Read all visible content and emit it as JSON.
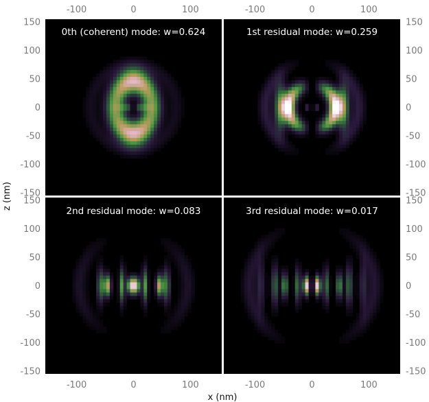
{
  "figure": {
    "xlabel": "x (nm)",
    "ylabel": "z (nm)"
  },
  "colors": {
    "background": "#000000",
    "separator": "#ffffff",
    "tick_text": "#7a7a7a",
    "colormap": [
      "#000000",
      "#2b1a3d",
      "#2c5a3a",
      "#4f9a43",
      "#b89a5a",
      "#e0b4c4",
      "#ffffff"
    ]
  },
  "chart_data": [
    {
      "type": "heatmap",
      "title": "0th (coherent) mode: w=0.624",
      "mode_index": 0,
      "weight": 0.624,
      "xlim": [
        -155,
        155
      ],
      "ylim": [
        -155,
        155
      ],
      "xticks": [
        "-100",
        "0",
        "100"
      ],
      "yticks": [
        "150",
        "100",
        "50",
        "0",
        "-50",
        "-100",
        "-150"
      ],
      "xtick_values": [
        -100,
        0,
        100
      ],
      "ytick_values": [
        150,
        100,
        50,
        0,
        -50,
        -100,
        -150
      ],
      "x_tick_position": "top",
      "y_tick_position": "left"
    },
    {
      "type": "heatmap",
      "title": "1st residual mode: w=0.259",
      "mode_index": 1,
      "weight": 0.259,
      "xlim": [
        -155,
        155
      ],
      "ylim": [
        -155,
        155
      ],
      "xticks": [
        "-100",
        "0",
        "100"
      ],
      "yticks": [
        "150",
        "100",
        "50",
        "0",
        "-50",
        "-100",
        "-150"
      ],
      "xtick_values": [
        -100,
        0,
        100
      ],
      "ytick_values": [
        150,
        100,
        50,
        0,
        -50,
        -100,
        -150
      ],
      "x_tick_position": "top",
      "y_tick_position": "right"
    },
    {
      "type": "heatmap",
      "title": "2nd residual mode: w=0.083",
      "mode_index": 2,
      "weight": 0.083,
      "xlim": [
        -155,
        155
      ],
      "ylim": [
        -155,
        155
      ],
      "xticks": [
        "-100",
        "0",
        "100"
      ],
      "yticks": [
        "150",
        "100",
        "50",
        "0",
        "-50",
        "-100",
        "-150"
      ],
      "xtick_values": [
        -100,
        0,
        100
      ],
      "ytick_values": [
        150,
        100,
        50,
        0,
        -50,
        -100,
        -150
      ],
      "x_tick_position": "bottom",
      "y_tick_position": "left"
    },
    {
      "type": "heatmap",
      "title": "3rd residual mode: w=0.017",
      "mode_index": 3,
      "weight": 0.017,
      "xlim": [
        -155,
        155
      ],
      "ylim": [
        -155,
        155
      ],
      "xticks": [
        "-100",
        "0",
        "100"
      ],
      "yticks": [
        "150",
        "100",
        "50",
        "0",
        "-50",
        "-100",
        "-150"
      ],
      "xtick_values": [
        -100,
        0,
        100
      ],
      "ytick_values": [
        150,
        100,
        50,
        0,
        -50,
        -100,
        -150
      ],
      "x_tick_position": "bottom",
      "y_tick_position": "right"
    }
  ]
}
